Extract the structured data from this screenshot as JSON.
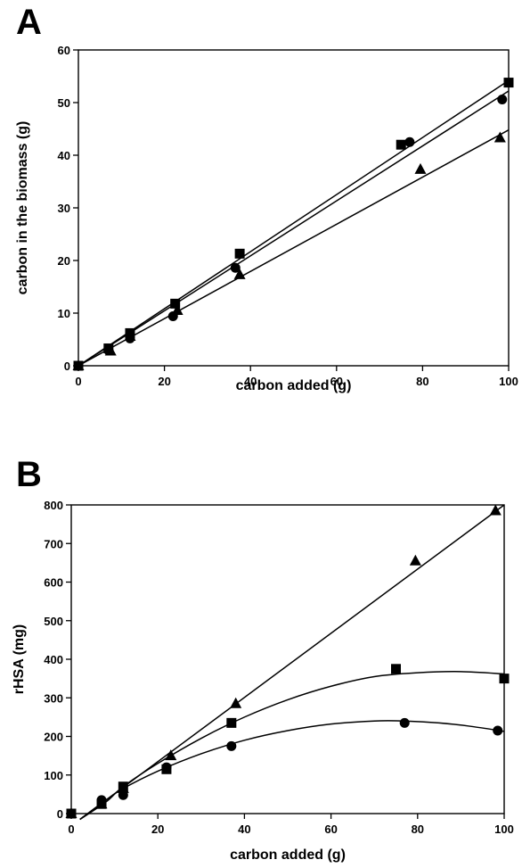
{
  "chart_data": [
    {
      "panel": "A",
      "type": "scatter",
      "xlabel": "carbon added (g)",
      "ylabel": "carbon in the biomass (g)",
      "xlim": [
        0,
        100
      ],
      "ylim": [
        0,
        60
      ],
      "xticks": [
        "0",
        "20",
        "40",
        "60",
        "80",
        "100"
      ],
      "yticks": [
        "0",
        "10",
        "20",
        "30",
        "40",
        "50",
        "60"
      ],
      "grid": false,
      "series": [
        {
          "marker": "square",
          "points": [
            [
              0,
              0
            ],
            [
              7,
              3.3
            ],
            [
              12,
              6.2
            ],
            [
              22.5,
              11.8
            ],
            [
              37.5,
              21.3
            ],
            [
              75,
              42
            ],
            [
              100,
              53.8
            ]
          ],
          "fit": {
            "kind": "linear",
            "x": [
              0,
              100
            ],
            "y": [
              0,
              54.2
            ]
          }
        },
        {
          "marker": "circle",
          "points": [
            [
              0,
              0
            ],
            [
              7,
              2.9
            ],
            [
              12,
              5.2
            ],
            [
              22,
              9.4
            ],
            [
              36.5,
              18.6
            ],
            [
              77,
              42.5
            ],
            [
              98.5,
              50.6
            ]
          ],
          "fit": {
            "kind": "linear",
            "x": [
              0,
              100
            ],
            "y": [
              0,
              52.2
            ]
          }
        },
        {
          "marker": "triangle",
          "points": [
            [
              0,
              0
            ],
            [
              7.5,
              2.8
            ],
            [
              12,
              5.6
            ],
            [
              23,
              10.5
            ],
            [
              37.5,
              17.3
            ],
            [
              79.5,
              37.3
            ],
            [
              98,
              43.3
            ]
          ],
          "fit": {
            "kind": "linear",
            "x": [
              0,
              100
            ],
            "y": [
              0,
              44.8
            ]
          }
        }
      ]
    },
    {
      "panel": "B",
      "type": "scatter",
      "xlabel": "carbon added (g)",
      "ylabel": "rHSA (mg)",
      "xlim": [
        0,
        100
      ],
      "ylim": [
        0,
        800
      ],
      "xticks": [
        "0",
        "20",
        "40",
        "60",
        "80",
        "100"
      ],
      "yticks": [
        "0",
        "100",
        "200",
        "300",
        "400",
        "500",
        "600",
        "700",
        "800"
      ],
      "grid": false,
      "series": [
        {
          "marker": "triangle",
          "points": [
            [
              0,
              0
            ],
            [
              7,
              25
            ],
            [
              12,
              65
            ],
            [
              23,
              150
            ],
            [
              38,
              285
            ],
            [
              79.5,
              655
            ],
            [
              98,
              785
            ]
          ],
          "fit": {
            "kind": "linear",
            "x": [
              2,
              100
            ],
            "y": [
              -15,
              800
            ]
          }
        },
        {
          "marker": "square",
          "points": [
            [
              0,
              0
            ],
            [
              7,
              25
            ],
            [
              12,
              70
            ],
            [
              22,
              115
            ],
            [
              37,
              235
            ],
            [
              75,
              375
            ],
            [
              100,
              350
            ]
          ],
          "fit": {
            "kind": "curve",
            "x": [
              2,
              8,
              12,
              20,
              30,
              40,
              50,
              60,
              70,
              80,
              90,
              100
            ],
            "y": [
              -15,
              30,
              70,
              130,
              195,
              250,
              295,
              330,
              355,
              365,
              368,
              362
            ]
          }
        },
        {
          "marker": "circle",
          "points": [
            [
              0,
              0
            ],
            [
              7,
              35
            ],
            [
              12,
              48
            ],
            [
              22,
              120
            ],
            [
              37,
              175
            ],
            [
              77,
              235
            ],
            [
              98.5,
              215
            ]
          ],
          "fit": {
            "kind": "curve",
            "x": [
              2,
              8,
              12,
              20,
              30,
              40,
              50,
              60,
              70,
              77,
              85,
              93,
              100
            ],
            "y": [
              -15,
              35,
              65,
              110,
              155,
              190,
              215,
              232,
              240,
              240,
              235,
              225,
              213
            ]
          }
        }
      ]
    }
  ]
}
